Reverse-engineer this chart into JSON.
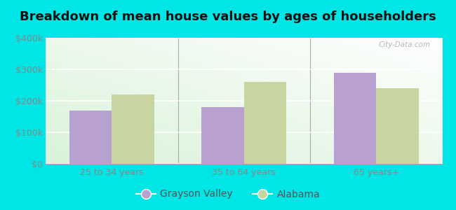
{
  "title": "Breakdown of mean house values by ages of householders",
  "categories": [
    "25 to 34 years",
    "35 to 64 years",
    "65 years+"
  ],
  "grayson_valley": [
    170000,
    180000,
    290000
  ],
  "alabama": [
    220000,
    260000,
    240000
  ],
  "grayson_color": "#b8a0d0",
  "alabama_color": "#c8d5a0",
  "ylim": [
    0,
    400000
  ],
  "yticks": [
    0,
    100000,
    200000,
    300000,
    400000
  ],
  "ytick_labels": [
    "$0",
    "$100k",
    "$200k",
    "$300k",
    "$400k"
  ],
  "bar_width": 0.32,
  "figure_bg": "#00e5e5",
  "plot_bg_color": "#e8f5e8",
  "legend_labels": [
    "Grayson Valley",
    "Alabama"
  ],
  "watermark": "City-Data.com",
  "title_fontsize": 13,
  "tick_fontsize": 9,
  "legend_fontsize": 10
}
